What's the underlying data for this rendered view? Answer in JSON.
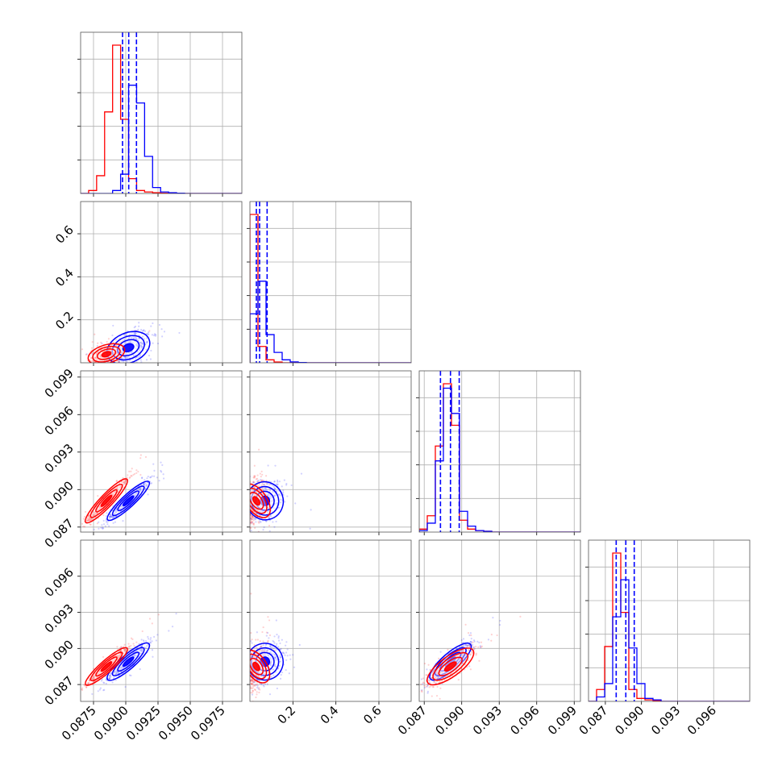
{
  "colors": {
    "series_a": "#ff0000",
    "series_b": "#0000ff",
    "grid": "#b0b0b0",
    "axis": "#555555"
  },
  "chart_data": {
    "type": "corner",
    "grid": true,
    "dims": [
      {
        "range": [
          0.0865,
          0.099
        ],
        "ticks": [
          "0.0875",
          "0.0900",
          "0.0925",
          "0.0950",
          "0.0975"
        ],
        "tick_values": [
          0.0875,
          0.09,
          0.0925,
          0.095,
          0.0975
        ]
      },
      {
        "range": [
          0.0,
          0.75
        ],
        "ticks": [
          "0.2",
          "0.4",
          "0.6"
        ],
        "tick_values": [
          0.2,
          0.4,
          0.6
        ]
      },
      {
        "range": [
          0.0866,
          0.0995
        ],
        "ticks": [
          "0.087",
          "0.090",
          "0.093",
          "0.096",
          "0.099"
        ],
        "tick_values": [
          0.087,
          0.09,
          0.093,
          0.096,
          0.099
        ]
      },
      {
        "range": [
          0.0856,
          0.099
        ],
        "ticks": [
          "0.087",
          "0.090",
          "0.093",
          "0.096"
        ],
        "tick_values": [
          0.087,
          0.09,
          0.093,
          0.096
        ]
      }
    ],
    "histograms": [
      {
        "dim": 0,
        "bin_edges_start": 0.0865,
        "bin_width": 0.00062,
        "series": [
          {
            "name": "",
            "color": "#ff0000",
            "counts": [
              0,
              0.02,
              0.12,
              0.55,
              1.0,
              0.5,
              0.1,
              0.02,
              0.01,
              0.005,
              0.002,
              0,
              0,
              0,
              0,
              0,
              0,
              0,
              0,
              0
            ]
          },
          {
            "name": "",
            "color": "#0000ff",
            "counts": [
              0,
              0,
              0,
              0,
              0.02,
              0.13,
              0.73,
              0.61,
              0.25,
              0.04,
              0.01,
              0.005,
              0.002,
              0,
              0,
              0,
              0,
              0,
              0,
              0
            ]
          }
        ],
        "quantiles": [
          0.08975,
          0.09023,
          0.09083
        ]
      },
      {
        "dim": 1,
        "bin_edges_start": 0.0,
        "bin_width": 0.0375,
        "series": [
          {
            "name": "",
            "color": "#ff0000",
            "counts": [
              1.0,
              0.11,
              0.02,
              0.005,
              0,
              0,
              0,
              0,
              0,
              0,
              0,
              0,
              0,
              0,
              0,
              0,
              0,
              0,
              0,
              0
            ]
          },
          {
            "name": "",
            "color": "#0000ff",
            "counts": [
              0.33,
              0.55,
              0.19,
              0.07,
              0.02,
              0.006,
              0.002,
              0,
              0,
              0,
              0,
              0,
              0,
              0,
              0,
              0,
              0,
              0,
              0,
              0
            ]
          }
        ],
        "quantiles": [
          0.03,
          0.045,
          0.08
        ]
      },
      {
        "dim": 2,
        "bin_edges_start": 0.0866,
        "bin_width": 0.000645,
        "series": [
          {
            "name": "",
            "color": "#ff0000",
            "counts": [
              0.02,
              0.11,
              0.58,
              1.0,
              0.72,
              0.08,
              0.02,
              0.01,
              0.005,
              0,
              0,
              0,
              0,
              0,
              0,
              0,
              0,
              0,
              0,
              0
            ]
          },
          {
            "name": "",
            "color": "#0000ff",
            "counts": [
              0.01,
              0.06,
              0.48,
              0.97,
              0.8,
              0.14,
              0.04,
              0.01,
              0.005,
              0,
              0,
              0,
              0,
              0,
              0,
              0,
              0,
              0,
              0,
              0
            ]
          }
        ],
        "quantiles": [
          0.0883,
          0.0891,
          0.0898
        ]
      },
      {
        "dim": 3,
        "bin_edges_start": 0.0856,
        "bin_width": 0.00067,
        "series": [
          {
            "name": "",
            "color": "#ff0000",
            "counts": [
              0,
              0.08,
              0.37,
              1.0,
              0.6,
              0.08,
              0.02,
              0.01,
              0.005,
              0,
              0,
              0,
              0,
              0,
              0,
              0,
              0,
              0,
              0,
              0
            ]
          },
          {
            "name": "",
            "color": "#0000ff",
            "counts": [
              0,
              0.03,
              0.12,
              0.57,
              0.82,
              0.36,
              0.12,
              0.02,
              0.01,
              0,
              0,
              0,
              0,
              0,
              0,
              0,
              0,
              0,
              0,
              0
            ]
          }
        ],
        "quantiles": [
          0.0879,
          0.0887,
          0.0894
        ]
      }
    ],
    "scatter_panels": [
      {
        "x_dim": 0,
        "y_dim": 1,
        "series": [
          {
            "name": "",
            "color": "#ff0000",
            "center": [
              0.0885,
              0.04
            ],
            "spread": [
              0.0007,
              0.025
            ],
            "corr": 0.5
          },
          {
            "name": "",
            "color": "#0000ff",
            "center": [
              0.0902,
              0.07
            ],
            "spread": [
              0.0008,
              0.04
            ],
            "corr": 0.5
          }
        ]
      },
      {
        "x_dim": 0,
        "y_dim": 2,
        "series": [
          {
            "name": "",
            "color": "#ff0000",
            "center": [
              0.0885,
              0.0891
            ],
            "spread": [
              0.0008,
              0.0009
            ],
            "corr": 0.96
          },
          {
            "name": "",
            "color": "#0000ff",
            "center": [
              0.0902,
              0.0891
            ],
            "spread": [
              0.0008,
              0.0008
            ],
            "corr": 0.95
          }
        ]
      },
      {
        "x_dim": 1,
        "y_dim": 2,
        "series": [
          {
            "name": "",
            "color": "#ff0000",
            "center": [
              0.03,
              0.0891
            ],
            "spread": [
              0.02,
              0.0008
            ],
            "corr": 0.3
          },
          {
            "name": "",
            "color": "#0000ff",
            "center": [
              0.07,
              0.0891
            ],
            "spread": [
              0.04,
              0.0008
            ],
            "corr": 0.3
          }
        ]
      },
      {
        "x_dim": 0,
        "y_dim": 3,
        "series": [
          {
            "name": "",
            "color": "#ff0000",
            "center": [
              0.0885,
              0.0885
            ],
            "spread": [
              0.0008,
              0.0008
            ],
            "corr": 0.95
          },
          {
            "name": "",
            "color": "#0000ff",
            "center": [
              0.0902,
              0.0889
            ],
            "spread": [
              0.0008,
              0.0008
            ],
            "corr": 0.93
          }
        ]
      },
      {
        "x_dim": 1,
        "y_dim": 3,
        "series": [
          {
            "name": "",
            "color": "#ff0000",
            "center": [
              0.03,
              0.0885
            ],
            "spread": [
              0.02,
              0.0008
            ],
            "corr": 0.3
          },
          {
            "name": "",
            "color": "#0000ff",
            "center": [
              0.07,
              0.0889
            ],
            "spread": [
              0.04,
              0.0008
            ],
            "corr": 0.3
          }
        ]
      },
      {
        "x_dim": 2,
        "y_dim": 3,
        "series": [
          {
            "name": "",
            "color": "#ff0000",
            "center": [
              0.0891,
              0.0885
            ],
            "spread": [
              0.0009,
              0.0008
            ],
            "corr": 0.85
          },
          {
            "name": "",
            "color": "#0000ff",
            "center": [
              0.0891,
              0.0889
            ],
            "spread": [
              0.0008,
              0.0008
            ],
            "corr": 0.9
          }
        ]
      }
    ]
  }
}
